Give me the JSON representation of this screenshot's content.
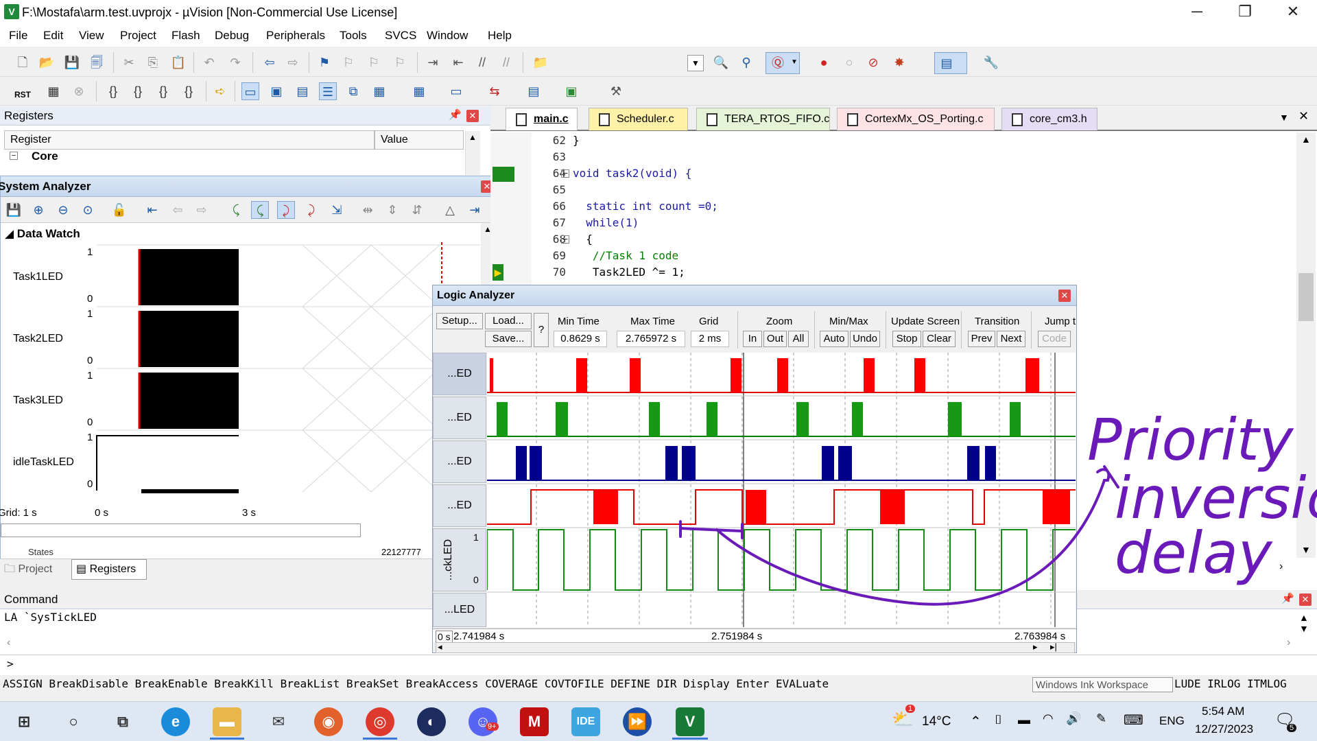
{
  "window": {
    "title": "F:\\Mostafa\\arm.test.uvprojx - µVision  [Non-Commercial Use License]",
    "app_icon": "V",
    "controls": [
      "─",
      "❐",
      "✕"
    ]
  },
  "menu": [
    "File",
    "Edit",
    "View",
    "Project",
    "Flash",
    "Debug",
    "Peripherals",
    "Tools",
    "SVCS",
    "Window",
    "Help"
  ],
  "toolbar2": {
    "rst_label": "RST"
  },
  "registers_panel": {
    "title": "Registers",
    "col_register": "Register",
    "col_value": "Value",
    "root_item": "Core",
    "bottom_row_name": "States",
    "bottom_row_value": "22127777"
  },
  "system_analyzer": {
    "title": "System Analyzer",
    "section": "Data Watch",
    "signals": [
      {
        "name": "Task1LED",
        "hi": "1",
        "lo": "0"
      },
      {
        "name": "Task2LED",
        "hi": "1",
        "lo": "0"
      },
      {
        "name": "Task3LED",
        "hi": "1",
        "lo": "0"
      },
      {
        "name": "idleTaskLED",
        "hi": "1",
        "lo": "0"
      }
    ],
    "grid": "Grid: 1 s",
    "axis_start": "0 s",
    "axis_mid": "3 s",
    "bottom_tabs": [
      "Project",
      "Registers"
    ]
  },
  "editor": {
    "tabs": [
      {
        "label": "main.c",
        "color": "#ffffff"
      },
      {
        "label": "Scheduler.c",
        "color": "#fff2a8"
      },
      {
        "label": "TERA_RTOS_FIFO.c",
        "color": "#e5f3d6"
      },
      {
        "label": "CortexMx_OS_Porting.c",
        "color": "#fde2e6"
      },
      {
        "label": "core_cm3.h",
        "color": "#e5dcf5"
      }
    ],
    "lines": [
      {
        "num": "62",
        "text": "}"
      },
      {
        "num": "63",
        "text": ""
      },
      {
        "num": "64",
        "text": "void task2(void) {"
      },
      {
        "num": "65",
        "text": ""
      },
      {
        "num": "66",
        "text": "  static int count =0;"
      },
      {
        "num": "67",
        "text": "  while(1)"
      },
      {
        "num": "68",
        "text": "  {"
      },
      {
        "num": "69",
        "text": "   //Task 1 code"
      },
      {
        "num": "70",
        "text": "   Task2LED ^= 1;"
      }
    ]
  },
  "logic_analyzer": {
    "title": "Logic Analyzer",
    "btn_setup": "Setup...",
    "btn_load": "Load...",
    "btn_save": "Save...",
    "btn_help": "?",
    "min_time_label": "Min Time",
    "min_time": "0.8629 s",
    "max_time_label": "Max Time",
    "max_time": "2.765972 s",
    "grid_label": "Grid",
    "grid": "2 ms",
    "zoom_label": "Zoom",
    "zoom_in": "In",
    "zoom_out": "Out",
    "zoom_all": "All",
    "minmax_label": "Min/Max",
    "mm_auto": "Auto",
    "mm_undo": "Undo",
    "update_label": "Update Screen",
    "upd_stop": "Stop",
    "upd_clear": "Clear",
    "transition_label": "Transition",
    "tr_prev": "Prev",
    "tr_next": "Next",
    "jump_label": "Jump t",
    "jump_code": "Code",
    "channels": [
      "...ED",
      "...ED",
      "...ED",
      "...ED",
      "...ckLED",
      "...LED"
    ],
    "sys_hi": "1",
    "sys_lo": "0",
    "time_zero": "0 s",
    "time_left": "2.741984 s",
    "time_mid": "2.751984 s",
    "time_right": "2.763984 s"
  },
  "annotation": {
    "line1": "Priority",
    "line2": "inversion",
    "line3": "delay"
  },
  "command": {
    "title": "Command",
    "output": "LA `SysTickLED",
    "prompt": ">",
    "keywords": "ASSIGN BreakDisable BreakEnable BreakKill BreakList BreakSet BreakAccess COVERAGE COVTOFILE DEFINE DIR Display Enter EVALuate",
    "keywords_tail": "LUDE IRLOG ITMLOG",
    "ink_tooltip": "Windows Ink Workspace"
  },
  "taskbar": {
    "weather": "14°C",
    "lang": "ENG",
    "time": "5:54 AM",
    "date": "12/27/2023",
    "notif_count": "5",
    "badge_9": "9+",
    "badge_1": "1",
    "ide_label": "IDE",
    "keil_label": "V"
  }
}
